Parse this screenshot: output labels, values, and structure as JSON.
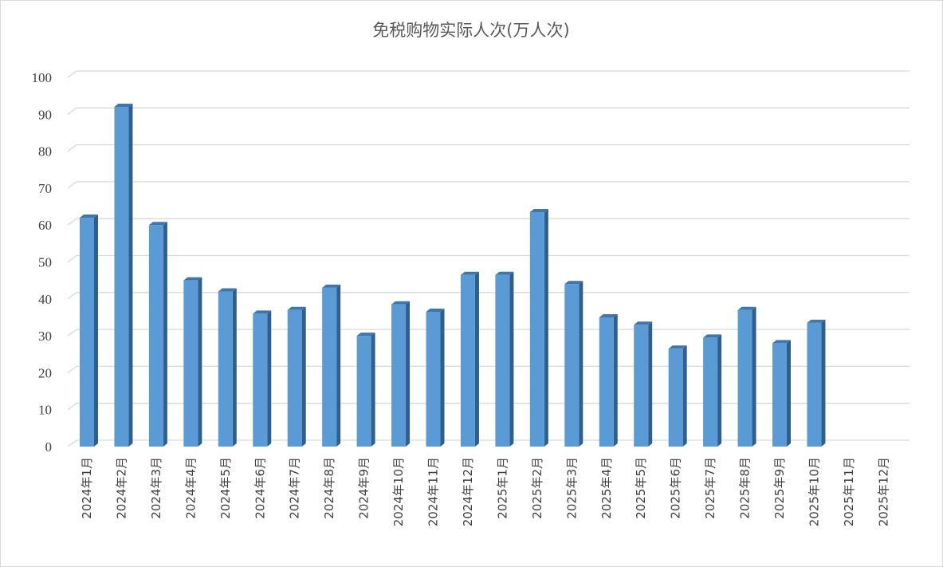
{
  "chart_data": {
    "type": "bar",
    "title": "免税购物实际人次(万人次)",
    "xlabel": "",
    "ylabel": "",
    "ylim": [
      0,
      100
    ],
    "ytick_step": 10,
    "grid": true,
    "legend": "none",
    "bar_color": "#5b9bd5",
    "bar_side_color": "#2e5f8e",
    "bar_top_color": "#3f76ac",
    "categories": [
      "2024年1月",
      "2024年2月",
      "2024年3月",
      "2024年4月",
      "2024年5月",
      "2024年6月",
      "2024年7月",
      "2024年8月",
      "2024年9月",
      "2024年10月",
      "2024年11月",
      "2024年12月",
      "2025年1月",
      "2025年2月",
      "2025年3月",
      "2025年4月",
      "2025年5月",
      "2025年6月",
      "2025年7月",
      "2025年8月",
      "2025年9月",
      "2025年10月",
      "2025年11月",
      "2025年12月"
    ],
    "values": [
      62,
      92,
      60,
      45,
      42,
      36,
      37,
      43,
      30,
      38.5,
      36.5,
      46.5,
      46.5,
      63.5,
      44,
      35,
      33,
      26.5,
      29.5,
      37,
      28,
      33.5,
      null,
      null
    ]
  }
}
